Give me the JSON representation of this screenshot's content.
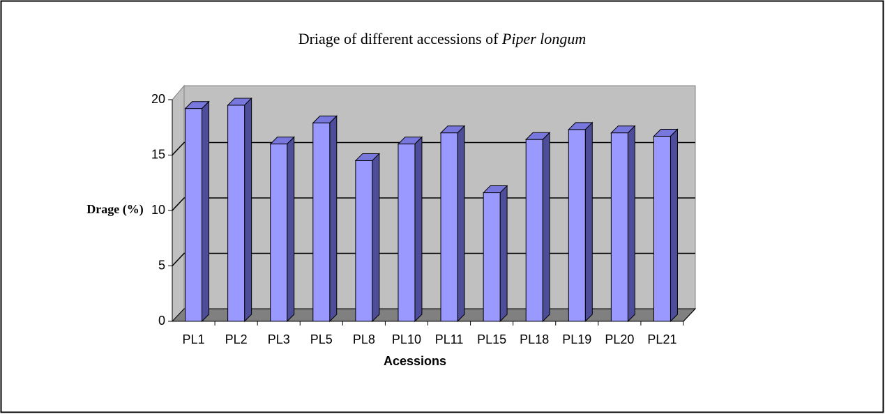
{
  "chart_data": {
    "type": "bar3d",
    "title": [
      "Driage of different accessions of ",
      "Piper longum"
    ],
    "x_label": "Acessions",
    "y_label": "Drage (%)",
    "categories": [
      "PL1",
      "PL2",
      "PL3",
      "PL5",
      "PL8",
      "PL10",
      "PL11",
      "PL15",
      "PL18",
      "PL19",
      "PL20",
      "PL21"
    ],
    "values": [
      19.2,
      19.5,
      16.0,
      17.9,
      14.5,
      16.0,
      17.0,
      11.6,
      16.4,
      17.3,
      17.0,
      16.7
    ],
    "color": "#9999ff",
    "ylim": [
      0,
      20
    ],
    "yticks": [
      0,
      5,
      10,
      15,
      20
    ],
    "grid": true
  }
}
